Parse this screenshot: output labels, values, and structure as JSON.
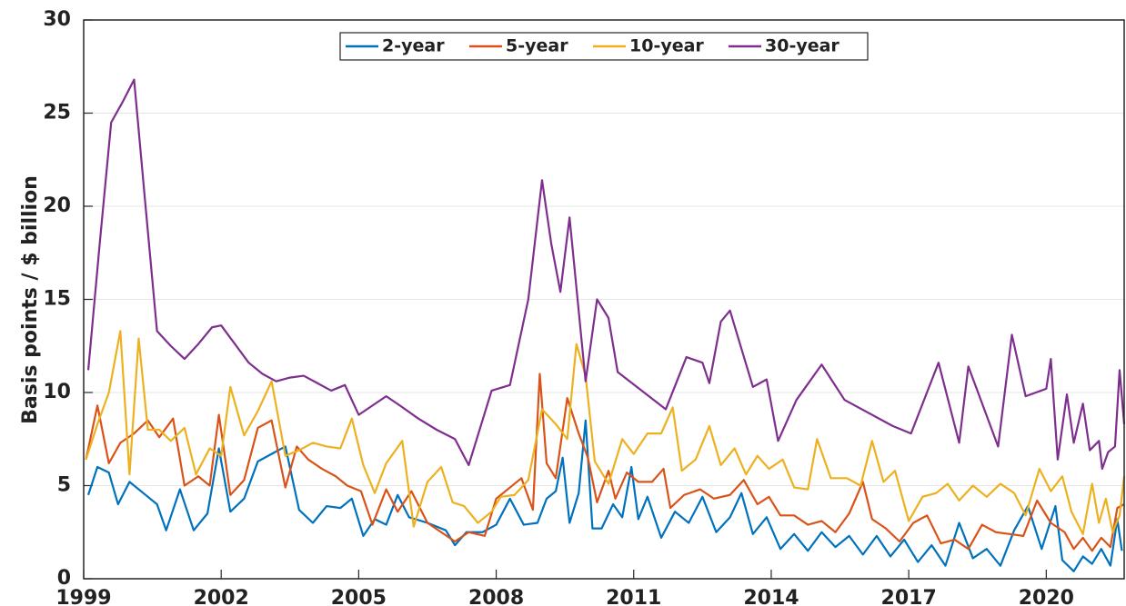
{
  "chart_data": {
    "type": "line",
    "ylabel": "Basis points / $ billion",
    "xlim": [
      1999,
      2021.7
    ],
    "xticks": [
      1999,
      2002,
      2005,
      2008,
      2011,
      2014,
      2017,
      2020
    ],
    "ylim": [
      0,
      30
    ],
    "yticks": [
      0,
      5,
      10,
      15,
      20,
      25,
      30
    ],
    "grid": "y",
    "legend": "top",
    "series": [
      {
        "name": "2-year",
        "color": "#0072BD",
        "x": [
          1999.1,
          1999.3,
          1999.55,
          1999.75,
          2000.0,
          2000.3,
          2000.6,
          2000.8,
          2001.1,
          2001.4,
          2001.7,
          2001.95,
          2002.2,
          2002.5,
          2002.8,
          2003.1,
          2003.4,
          2003.7,
          2004.0,
          2004.3,
          2004.6,
          2004.85,
          2005.1,
          2005.35,
          2005.6,
          2005.85,
          2006.1,
          2006.5,
          2006.9,
          2007.1,
          2007.35,
          2007.7,
          2008.0,
          2008.3,
          2008.6,
          2008.9,
          2009.1,
          2009.3,
          2009.45,
          2009.6,
          2009.8,
          2009.95,
          2010.1,
          2010.3,
          2010.55,
          2010.75,
          2010.95,
          2011.1,
          2011.3,
          2011.6,
          2011.9,
          2012.2,
          2012.5,
          2012.8,
          2013.1,
          2013.35,
          2013.6,
          2013.9,
          2014.2,
          2014.5,
          2014.8,
          2015.1,
          2015.4,
          2015.7,
          2016.0,
          2016.3,
          2016.6,
          2016.9,
          2017.2,
          2017.5,
          2017.8,
          2018.1,
          2018.4,
          2018.7,
          2019.0,
          2019.3,
          2019.6,
          2019.9,
          2020.2,
          2020.35,
          2020.6,
          2020.8,
          2021.0,
          2021.2,
          2021.4,
          2021.55,
          2021.65
        ],
        "values": [
          4.5,
          6.0,
          5.7,
          4.0,
          5.2,
          4.6,
          4.0,
          2.6,
          4.8,
          2.6,
          3.5,
          7.0,
          3.6,
          4.3,
          6.3,
          6.7,
          7.1,
          3.7,
          3.0,
          3.9,
          3.8,
          4.3,
          2.3,
          3.2,
          2.9,
          4.5,
          3.3,
          3.0,
          2.6,
          1.8,
          2.5,
          2.5,
          2.9,
          4.3,
          2.9,
          3.0,
          4.3,
          4.7,
          6.5,
          3.0,
          4.6,
          8.5,
          2.7,
          2.7,
          4.0,
          3.3,
          6.0,
          3.2,
          4.4,
          2.2,
          3.6,
          3.0,
          4.4,
          2.5,
          3.3,
          4.6,
          2.4,
          3.3,
          1.6,
          2.4,
          1.5,
          2.5,
          1.7,
          2.3,
          1.3,
          2.3,
          1.2,
          2.1,
          0.9,
          1.8,
          0.7,
          3.0,
          1.1,
          1.6,
          0.7,
          2.6,
          3.9,
          1.6,
          3.9,
          1.0,
          0.4,
          1.2,
          0.8,
          1.6,
          0.7,
          3.2,
          1.5
        ]
      },
      {
        "name": "5-year",
        "color": "#D95319",
        "x": [
          1999.05,
          1999.3,
          1999.55,
          1999.8,
          2000.1,
          2000.4,
          2000.65,
          2000.95,
          2001.2,
          2001.5,
          2001.75,
          2001.95,
          2002.2,
          2002.5,
          2002.8,
          2003.1,
          2003.4,
          2003.65,
          2003.9,
          2004.2,
          2004.5,
          2004.75,
          2005.05,
          2005.3,
          2005.6,
          2005.85,
          2006.15,
          2006.5,
          2006.8,
          2007.1,
          2007.4,
          2007.75,
          2008.0,
          2008.3,
          2008.55,
          2008.8,
          2008.95,
          2009.1,
          2009.3,
          2009.55,
          2009.8,
          2010.0,
          2010.2,
          2010.45,
          2010.6,
          2010.85,
          2011.1,
          2011.4,
          2011.65,
          2011.8,
          2012.1,
          2012.45,
          2012.75,
          2013.1,
          2013.4,
          2013.7,
          2013.95,
          2014.2,
          2014.5,
          2014.8,
          2015.1,
          2015.4,
          2015.7,
          2016.0,
          2016.2,
          2016.5,
          2016.8,
          2017.1,
          2017.4,
          2017.7,
          2018.0,
          2018.3,
          2018.6,
          2018.9,
          2019.2,
          2019.5,
          2019.8,
          2020.1,
          2020.4,
          2020.6,
          2020.8,
          2021.0,
          2021.2,
          2021.4,
          2021.55,
          2021.7
        ],
        "values": [
          6.4,
          9.3,
          6.2,
          7.3,
          7.8,
          8.5,
          7.6,
          8.6,
          5.0,
          5.5,
          5.0,
          8.8,
          4.5,
          5.3,
          8.1,
          8.5,
          4.9,
          7.1,
          6.4,
          5.9,
          5.5,
          5.0,
          4.7,
          2.9,
          4.8,
          3.6,
          4.7,
          3.0,
          2.5,
          2.0,
          2.5,
          2.3,
          4.3,
          4.9,
          5.4,
          3.7,
          11.0,
          6.2,
          5.4,
          9.7,
          7.8,
          6.5,
          4.1,
          5.8,
          4.3,
          5.7,
          5.2,
          5.2,
          5.9,
          3.8,
          4.5,
          4.8,
          4.3,
          4.5,
          5.3,
          4.0,
          4.4,
          3.4,
          3.4,
          2.9,
          3.1,
          2.5,
          3.5,
          5.2,
          3.2,
          2.7,
          2.0,
          3.0,
          3.4,
          1.9,
          2.1,
          1.6,
          2.9,
          2.5,
          2.4,
          2.3,
          4.2,
          3.0,
          2.5,
          1.6,
          2.2,
          1.5,
          2.2,
          1.7,
          3.8,
          4.0
        ]
      },
      {
        "name": "10-year",
        "color": "#EDB120",
        "x": [
          1999.05,
          1999.3,
          1999.55,
          1999.8,
          2000.0,
          2000.2,
          2000.4,
          2000.65,
          2000.9,
          2001.2,
          2001.45,
          2001.75,
          2002.0,
          2002.2,
          2002.5,
          2002.8,
          2003.1,
          2003.4,
          2003.7,
          2004.0,
          2004.3,
          2004.6,
          2004.85,
          2005.1,
          2005.35,
          2005.6,
          2005.95,
          2006.2,
          2006.5,
          2006.8,
          2007.05,
          2007.3,
          2007.6,
          2007.9,
          2008.1,
          2008.4,
          2008.7,
          2009.0,
          2009.3,
          2009.55,
          2009.75,
          2009.95,
          2010.15,
          2010.45,
          2010.75,
          2011.0,
          2011.3,
          2011.6,
          2011.85,
          2012.05,
          2012.35,
          2012.65,
          2012.9,
          2013.2,
          2013.45,
          2013.7,
          2013.95,
          2014.25,
          2014.5,
          2014.8,
          2015.0,
          2015.3,
          2015.65,
          2015.95,
          2016.2,
          2016.45,
          2016.7,
          2017.0,
          2017.3,
          2017.6,
          2017.85,
          2018.1,
          2018.4,
          2018.7,
          2019.0,
          2019.3,
          2019.55,
          2019.85,
          2020.1,
          2020.35,
          2020.55,
          2020.8,
          2021.0,
          2021.15,
          2021.3,
          2021.45,
          2021.6,
          2021.7
        ],
        "values": [
          6.4,
          8.3,
          10,
          13.3,
          5.6,
          12.9,
          8.0,
          8.0,
          7.4,
          8.1,
          5.6,
          7.0,
          6.6,
          10.3,
          7.7,
          9.0,
          10.6,
          6.6,
          6.9,
          7.3,
          7.1,
          7.0,
          8.6,
          6.1,
          4.6,
          6.2,
          7.4,
          2.8,
          5.2,
          6.0,
          4.1,
          3.9,
          3.0,
          3.6,
          4.4,
          4.5,
          5.3,
          9.1,
          8.3,
          7.5,
          12.6,
          10.9,
          6.3,
          5.1,
          7.5,
          6.7,
          7.8,
          7.8,
          9.2,
          5.8,
          6.4,
          8.2,
          6.1,
          7.0,
          5.6,
          6.6,
          5.9,
          6.4,
          4.9,
          4.8,
          7.5,
          5.4,
          5.4,
          5.0,
          7.4,
          5.2,
          5.8,
          3.1,
          4.4,
          4.6,
          5.1,
          4.2,
          5.0,
          4.4,
          5.1,
          4.6,
          3.4,
          5.9,
          4.7,
          5.5,
          3.6,
          2.4,
          5.1,
          3.0,
          4.3,
          2.5,
          3.4,
          5.5
        ]
      },
      {
        "name": "30-year",
        "color": "#7E2F8E",
        "x": [
          1999.1,
          1999.35,
          1999.6,
          1999.85,
          2000.1,
          2000.35,
          2000.6,
          2000.9,
          2001.2,
          2001.5,
          2001.8,
          2002.0,
          2002.3,
          2002.6,
          2002.9,
          2003.2,
          2003.5,
          2003.8,
          2004.1,
          2004.4,
          2004.7,
          2005.0,
          2005.3,
          2005.6,
          2005.9,
          2006.3,
          2006.7,
          2007.1,
          2007.4,
          2007.9,
          2008.3,
          2008.7,
          2009.0,
          2009.2,
          2009.4,
          2009.6,
          2009.95,
          2010.2,
          2010.45,
          2010.65,
          2011.7,
          2012.15,
          2012.5,
          2012.65,
          2012.9,
          2013.1,
          2013.6,
          2013.9,
          2014.15,
          2014.55,
          2015.1,
          2015.6,
          2016.65,
          2017.05,
          2017.65,
          2018.1,
          2018.3,
          2018.95,
          2019.25,
          2019.55,
          2020.0,
          2020.1,
          2020.25,
          2020.45,
          2020.6,
          2020.8,
          2020.95,
          2021.15,
          2021.22,
          2021.35,
          2021.5,
          2021.6,
          2021.7
        ],
        "values": [
          11.2,
          18,
          24.5,
          25.6,
          26.8,
          20,
          13.3,
          12.5,
          11.8,
          12.6,
          13.5,
          13.6,
          12.6,
          11.6,
          11.0,
          10.6,
          10.8,
          10.9,
          10.5,
          10.1,
          10.4,
          8.8,
          9.3,
          9.8,
          9.3,
          8.6,
          8.0,
          7.5,
          6.1,
          10.1,
          10.4,
          15,
          21.4,
          18.0,
          15.4,
          19.4,
          10.6,
          15,
          14,
          11.1,
          9.1,
          11.9,
          11.6,
          10.5,
          13.8,
          14.4,
          10.3,
          10.7,
          7.4,
          9.6,
          11.5,
          9.6,
          8.2,
          7.8,
          11.6,
          7.3,
          11.4,
          7.1,
          13.1,
          9.8,
          10.2,
          11.8,
          6.4,
          9.9,
          7.3,
          9.4,
          6.9,
          7.4,
          5.9,
          6.8,
          7.1,
          11.2,
          8.3
        ]
      }
    ]
  }
}
